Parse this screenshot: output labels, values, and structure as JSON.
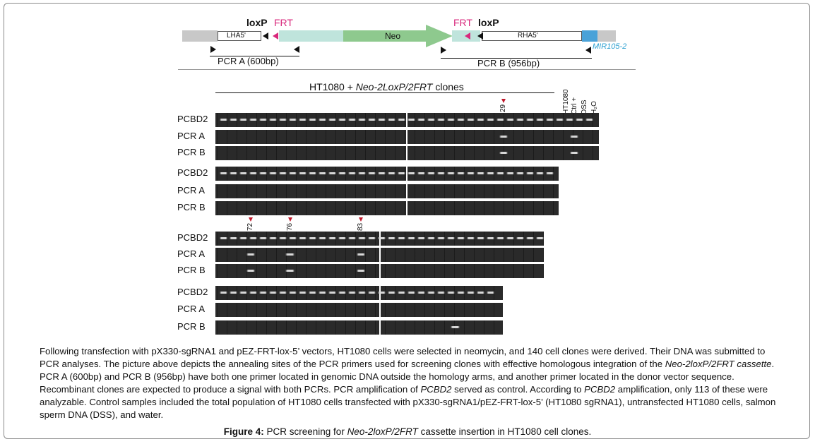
{
  "diagram": {
    "loxp_left": "loxP",
    "frt_left": "FRT",
    "frt_right": "FRT",
    "loxp_right": "loxP",
    "lha": "LHA5'",
    "neo": "Neo",
    "rha": "RHA5'",
    "mir": "MIR105-2",
    "pcr_a": "PCR A (600bp)",
    "pcr_b": "PCR B (956bp)"
  },
  "gel": {
    "header_prefix": "HT1080 + ",
    "header_italic": "Neo-2LoxP/2FRT",
    "header_suffix": " clones",
    "controls": [
      "HT1080",
      "Ctrl +",
      "DSS",
      "H₂O"
    ],
    "row_labels": [
      "PCBD2",
      "PCR A",
      "PCR B"
    ],
    "clone_markers": [
      "29",
      "72",
      "76",
      "83"
    ]
  },
  "caption": {
    "p1": "Following transfection with pX330-sgRNA1 and pEZ-FRT-lox-5’ vectors, HT1080 cells were selected in neomycin, and 140 cell clones were derived. Their DNA was submitted to PCR analyses. The picture above depicts the annealing sites of the PCR primers used for screening clones with effective homologous integration of the ",
    "p1_italic": "Neo-2loxP/2FRT cassette",
    "p2": ". PCR A (600bp) and PCR B (956bp) have both one primer located in genomic DNA outside the homology arms, and another primer located in the donor vector sequence. Recombinant clones are expected to produce a signal with both PCRs. PCR amplification of ",
    "p2_italic": "PCBD2",
    "p3": " served as control. According to ",
    "p3_italic": "PCBD2",
    "p4": " amplification, only 113 of these were analyzable. Control samples included the total population of HT1080 cells transfected with pX330-sgRNA1/pEZ-FRT-lox-5’ (HT1080 sgRNA1), untransfected HT1080 cells, salmon sperm DNA (DSS), and water."
  },
  "figure": {
    "label": "Figure 4:",
    "text_prefix": " PCR screening for ",
    "text_italic": "Neo-2loxP/2FRT",
    "text_suffix": " cassette insertion in HT1080 cell clones."
  }
}
